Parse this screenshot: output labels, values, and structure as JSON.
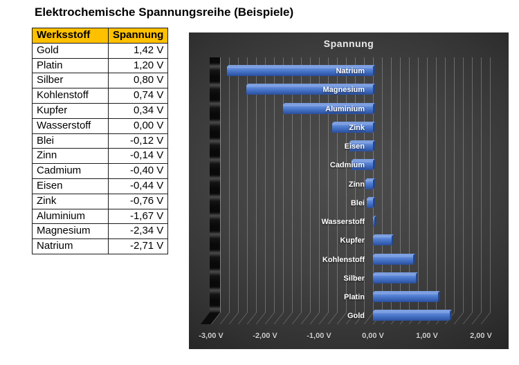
{
  "page": {
    "title": "Elektrochemische Spannungsreihe (Beispiele)"
  },
  "table": {
    "headers": [
      "Werksstoff",
      "Spannung"
    ],
    "header_bg": "#FFC000",
    "rows": [
      {
        "name": "Gold",
        "value": "1,42 V"
      },
      {
        "name": "Platin",
        "value": "1,20 V"
      },
      {
        "name": "Silber",
        "value": "0,80 V"
      },
      {
        "name": "Kohlenstoff",
        "value": "0,74 V"
      },
      {
        "name": "Kupfer",
        "value": "0,34 V"
      },
      {
        "name": "Wasserstoff",
        "value": "0,00 V"
      },
      {
        "name": "Blei",
        "value": "-0,12 V"
      },
      {
        "name": "Zinn",
        "value": "-0,14 V"
      },
      {
        "name": "Cadmium",
        "value": "-0,40 V"
      },
      {
        "name": "Eisen",
        "value": "-0,44 V"
      },
      {
        "name": "Zink",
        "value": "-0,76 V"
      },
      {
        "name": "Aluminium",
        "value": "-1,67 V"
      },
      {
        "name": "Magnesium",
        "value": "-2,34 V"
      },
      {
        "name": "Natrium",
        "value": "-2,71 V"
      }
    ]
  },
  "chart_data": {
    "type": "bar",
    "orientation": "horizontal",
    "title": "Spannung",
    "style": "excel-3d-dark",
    "categories_top_to_bottom": [
      "Natrium",
      "Magnesium",
      "Aluminium",
      "Zink",
      "Eisen",
      "Cadmium",
      "Zinn",
      "Blei",
      "Wasserstoff",
      "Kupfer",
      "Kohlenstoff",
      "Silber",
      "Platin",
      "Gold"
    ],
    "values_top_to_bottom": [
      -2.71,
      -2.34,
      -1.67,
      -0.76,
      -0.44,
      -0.4,
      -0.14,
      -0.12,
      0.0,
      0.34,
      0.74,
      0.8,
      1.2,
      1.42
    ],
    "value_unit": "V",
    "x_ticks": [
      {
        "value": -3,
        "label": "-3,00 V"
      },
      {
        "value": -2,
        "label": "-2,00 V"
      },
      {
        "value": -1,
        "label": "-1,00 V"
      },
      {
        "value": 0,
        "label": "0,00 V"
      },
      {
        "value": 1,
        "label": "1,00 V"
      },
      {
        "value": 2,
        "label": "2,00 V"
      }
    ],
    "xlim": [
      -3.17,
      2.17
    ],
    "minor_gridlines_per_unit": 6,
    "grid": true,
    "legend": "none",
    "bar_color": "#4472C4",
    "background_color": "#3d3d3d",
    "label_color": "#ffffff",
    "tick_color": "#cfcfcf"
  }
}
